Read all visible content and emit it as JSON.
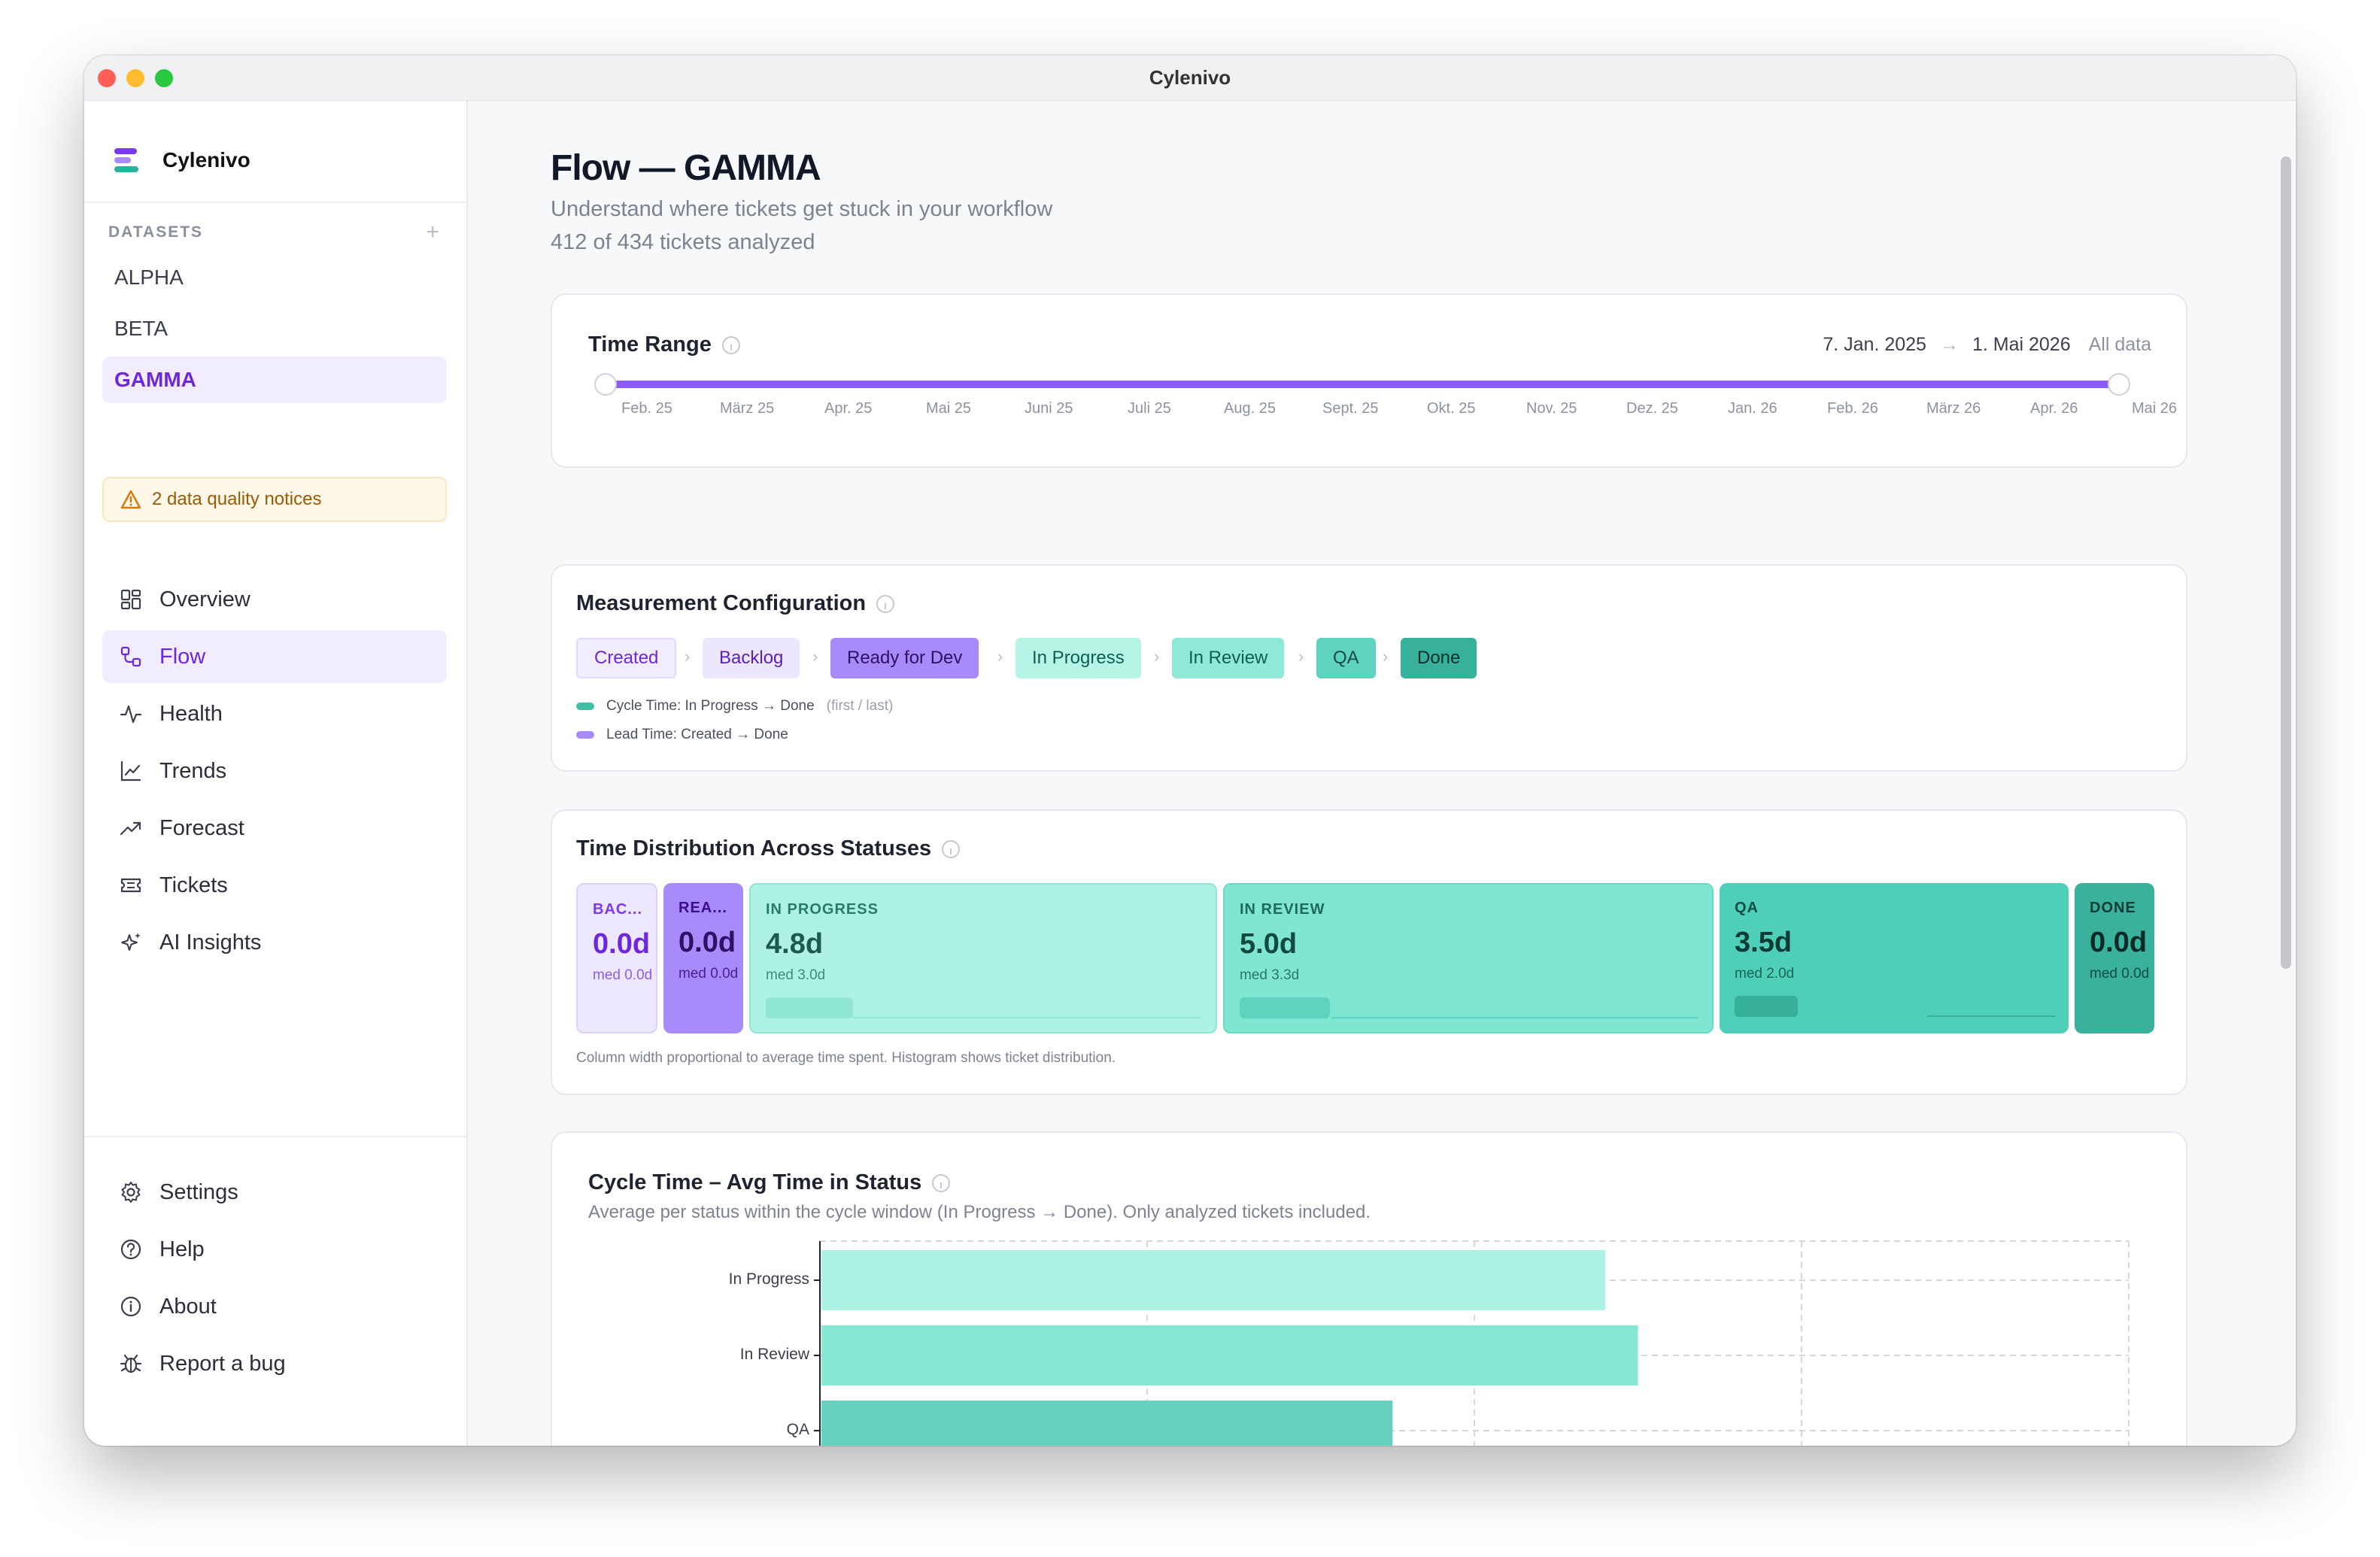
{
  "window": {
    "title": "Cylenivo"
  },
  "sidebar": {
    "brand": "Cylenivo",
    "datasets_label": "DATASETS",
    "datasets_add": "+",
    "datasets": [
      {
        "label": "ALPHA"
      },
      {
        "label": "BETA"
      },
      {
        "label": "GAMMA",
        "active": true
      }
    ],
    "notice": "2 data quality notices",
    "nav": [
      {
        "label": "Overview",
        "icon": "grid-icon"
      },
      {
        "label": "Flow",
        "icon": "flow-icon",
        "active": true
      },
      {
        "label": "Health",
        "icon": "pulse-icon"
      },
      {
        "label": "Trends",
        "icon": "line-chart-icon"
      },
      {
        "label": "Forecast",
        "icon": "trending-up-icon"
      },
      {
        "label": "Tickets",
        "icon": "ticket-icon"
      },
      {
        "label": "AI Insights",
        "icon": "sparkles-icon"
      }
    ],
    "footer": [
      {
        "label": "Settings",
        "icon": "gear-icon"
      },
      {
        "label": "Help",
        "icon": "help-circle-icon"
      },
      {
        "label": "About",
        "icon": "info-circle-icon"
      },
      {
        "label": "Report a bug",
        "icon": "bug-icon"
      }
    ]
  },
  "header": {
    "title": "Flow — GAMMA",
    "subtitle": "Understand where tickets get stuck in your workflow",
    "count": "412 of 434 tickets analyzed"
  },
  "time_range": {
    "title": "Time Range",
    "start": "7. Jan. 2025",
    "arrow": "→",
    "end": "1. Mai 2026",
    "all_data": "All data",
    "months": [
      "Feb. 25",
      "März 25",
      "Apr. 25",
      "Mai 25",
      "Juni 25",
      "Juli 25",
      "Aug. 25",
      "Sept. 25",
      "Okt. 25",
      "Nov. 25",
      "Dez. 25",
      "Jan. 26",
      "Feb. 26",
      "März 26",
      "Apr. 26",
      "Mai 26"
    ]
  },
  "measurement": {
    "title": "Measurement Configuration",
    "chevron": "›",
    "statuses": [
      "Created",
      "Backlog",
      "Ready for Dev",
      "In Progress",
      "In Review",
      "QA",
      "Done"
    ],
    "cycle_time": "Cycle Time: In Progress → Done",
    "cycle_note": "(first / last)",
    "lead_time": "Lead Time: Created → Done",
    "colors": {
      "cycle": "#3fbfa6",
      "lead": "#a78bfa"
    }
  },
  "distribution": {
    "title": "Time Distribution Across Statuses",
    "columns": [
      {
        "name": "BAC...",
        "value": "0.0d",
        "median": "med 0.0d"
      },
      {
        "name": "REA...",
        "value": "0.0d",
        "median": "med 0.0d"
      },
      {
        "name": "IN PROGRESS",
        "value": "4.8d",
        "median": "med 3.0d"
      },
      {
        "name": "IN REVIEW",
        "value": "5.0d",
        "median": "med 3.3d"
      },
      {
        "name": "QA",
        "value": "3.5d",
        "median": "med 2.0d"
      },
      {
        "name": "DONE",
        "value": "0.0d",
        "median": "med 0.0d"
      }
    ],
    "note": "Column width proportional to average time spent. Histogram shows ticket distribution."
  },
  "cycle_chart": {
    "title": "Cycle Time – Avg Time in Status",
    "subtitle": "Average per status within the cycle window (In Progress → Done). Only analyzed tickets included."
  },
  "chart_data": {
    "type": "bar",
    "orientation": "horizontal",
    "title": "Cycle Time – Avg Time in Status",
    "categories": [
      "In Progress",
      "In Review",
      "QA"
    ],
    "values": [
      4.8,
      5.0,
      3.5
    ],
    "colors": [
      "#aef2e3",
      "#86e8d4",
      "#66d1bf"
    ],
    "xlim": [
      0,
      8
    ],
    "grid": true
  }
}
